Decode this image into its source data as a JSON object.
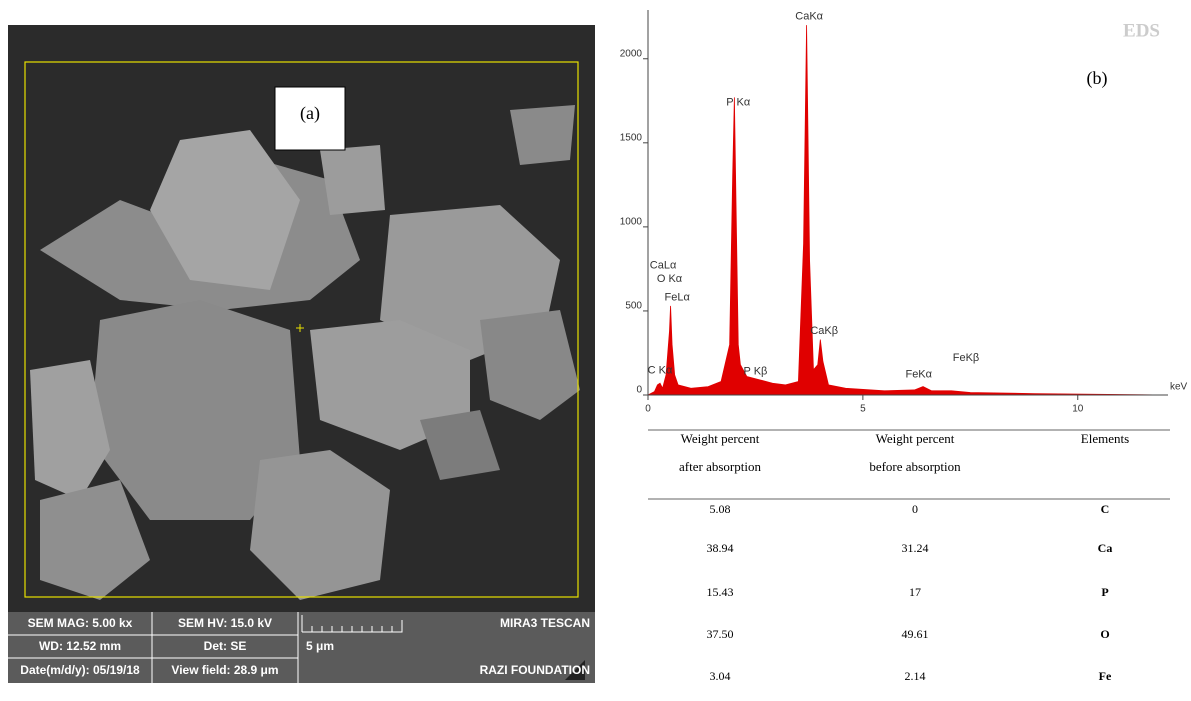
{
  "panel_a": {
    "label": "(a)",
    "info_bar": [
      [
        "SEM MAG: 5.00 kx",
        "SEM HV: 15.0 kV",
        "",
        "MIRA3 TESCAN"
      ],
      [
        "WD: 12.52 mm",
        "Det: SE",
        "5 μm",
        ""
      ],
      [
        "Date(m/d/y): 05/19/18",
        "View field: 28.9 μm",
        "",
        "RAZI FOUNDATION"
      ]
    ]
  },
  "chart_data": {
    "type": "area",
    "label": "(b)",
    "watermark": "EDS",
    "xlabel": "keV",
    "color": "#e00000",
    "x": [
      0,
      0.15,
      0.22,
      0.28,
      0.34,
      0.42,
      0.5,
      0.525,
      0.56,
      0.62,
      0.7,
      1.0,
      1.4,
      1.7,
      1.9,
      1.97,
      2.01,
      2.05,
      2.1,
      2.15,
      2.3,
      2.6,
      2.9,
      3.2,
      3.5,
      3.62,
      3.69,
      3.76,
      3.85,
      3.95,
      4.01,
      4.07,
      4.2,
      4.6,
      5.5,
      6.2,
      6.4,
      6.6,
      7.06,
      7.5,
      9,
      12
    ],
    "values": [
      0,
      20,
      60,
      70,
      40,
      120,
      380,
      530,
      300,
      120,
      60,
      40,
      50,
      80,
      300,
      1300,
      1770,
      1100,
      300,
      180,
      110,
      90,
      70,
      60,
      80,
      900,
      2200,
      800,
      150,
      180,
      330,
      200,
      60,
      40,
      25,
      30,
      50,
      25,
      25,
      15,
      8,
      0
    ],
    "xlim": [
      0,
      12.1
    ],
    "ylim": [
      0,
      2290
    ],
    "xticks": [
      0,
      5,
      10
    ],
    "yticks": [
      0,
      500,
      1000,
      1500,
      2000
    ],
    "annotations": [
      {
        "text": "CaKα",
        "x": 3.75,
        "y": 2250
      },
      {
        "text": "P Kα",
        "x": 2.1,
        "y": 1740
      },
      {
        "text": "CaLα",
        "x": 0.35,
        "y": 770
      },
      {
        "text": "O Kα",
        "x": 0.5,
        "y": 690
      },
      {
        "text": "FeLα",
        "x": 0.68,
        "y": 580
      },
      {
        "text": "CaKβ",
        "x": 4.1,
        "y": 380
      },
      {
        "text": "C Kα",
        "x": 0.28,
        "y": 145
      },
      {
        "text": "P Kβ",
        "x": 2.5,
        "y": 140
      },
      {
        "text": "FeKα",
        "x": 6.3,
        "y": 120
      },
      {
        "text": "FeKβ",
        "x": 7.4,
        "y": 220
      }
    ]
  },
  "table": {
    "header": [
      [
        "Weight percent",
        "after absorption"
      ],
      [
        "Weight percent",
        "before absorption"
      ],
      [
        "Elements"
      ]
    ],
    "rows": [
      [
        "5.08",
        "0",
        "C"
      ],
      [
        "38.94",
        "31.24",
        "Ca"
      ],
      [
        "15.43",
        "17",
        "P"
      ],
      [
        "37.50",
        "49.61",
        "O"
      ],
      [
        "3.04",
        "2.14",
        "Fe"
      ]
    ]
  }
}
